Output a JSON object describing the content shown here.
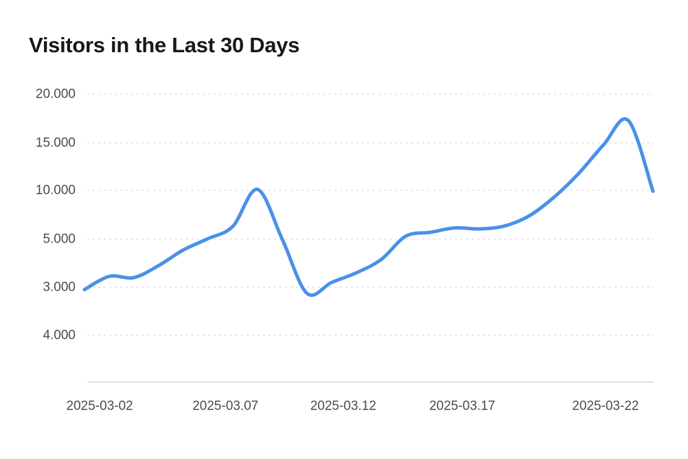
{
  "chart_data": {
    "type": "line",
    "title": "Visitors in the Last 30 Days",
    "xlabel": "",
    "ylabel": "",
    "legend": "none",
    "grid": "horizontal-dashed",
    "x_ticks": [
      "2025-03-02",
      "2025-03.07",
      "2025-03.12",
      "2025-03.17",
      "2025-03-22"
    ],
    "y_ticks": [
      "20.000",
      "15.000",
      "10.000",
      "5.000",
      "3.000",
      "4.000"
    ],
    "y_tick_values": [
      20000,
      15000,
      10000,
      5000,
      3000,
      4000
    ],
    "series": [
      {
        "name": "Visitors",
        "color": "#4a90e8",
        "x": [
          "2025-03-01",
          "2025-03-02",
          "2025-03-03",
          "2025-03-04",
          "2025-03-05",
          "2025-03-06",
          "2025-03-07",
          "2025-03-08",
          "2025-03-09",
          "2025-03-10",
          "2025-03-11",
          "2025-03-12",
          "2025-03-13",
          "2025-03-14",
          "2025-03-15",
          "2025-03-16",
          "2025-03-17",
          "2025-03-18",
          "2025-03-19",
          "2025-03-20",
          "2025-03-21",
          "2025-03-22",
          "2025-03-23",
          "2025-03-24"
        ],
        "values": [
          2900,
          3450,
          3400,
          3900,
          4550,
          5050,
          6300,
          10100,
          5000,
          2750,
          3200,
          3600,
          4150,
          5300,
          5700,
          6150,
          6050,
          6350,
          7400,
          9300,
          11800,
          14800,
          17300,
          9900
        ]
      }
    ],
    "colors": {
      "line": "#4a90e8",
      "grid": "#d9d9d9",
      "axis_line": "#d6d6d6",
      "tick_text": "#4a4a4a",
      "title_text": "#181818",
      "background": "#ffffff"
    }
  }
}
